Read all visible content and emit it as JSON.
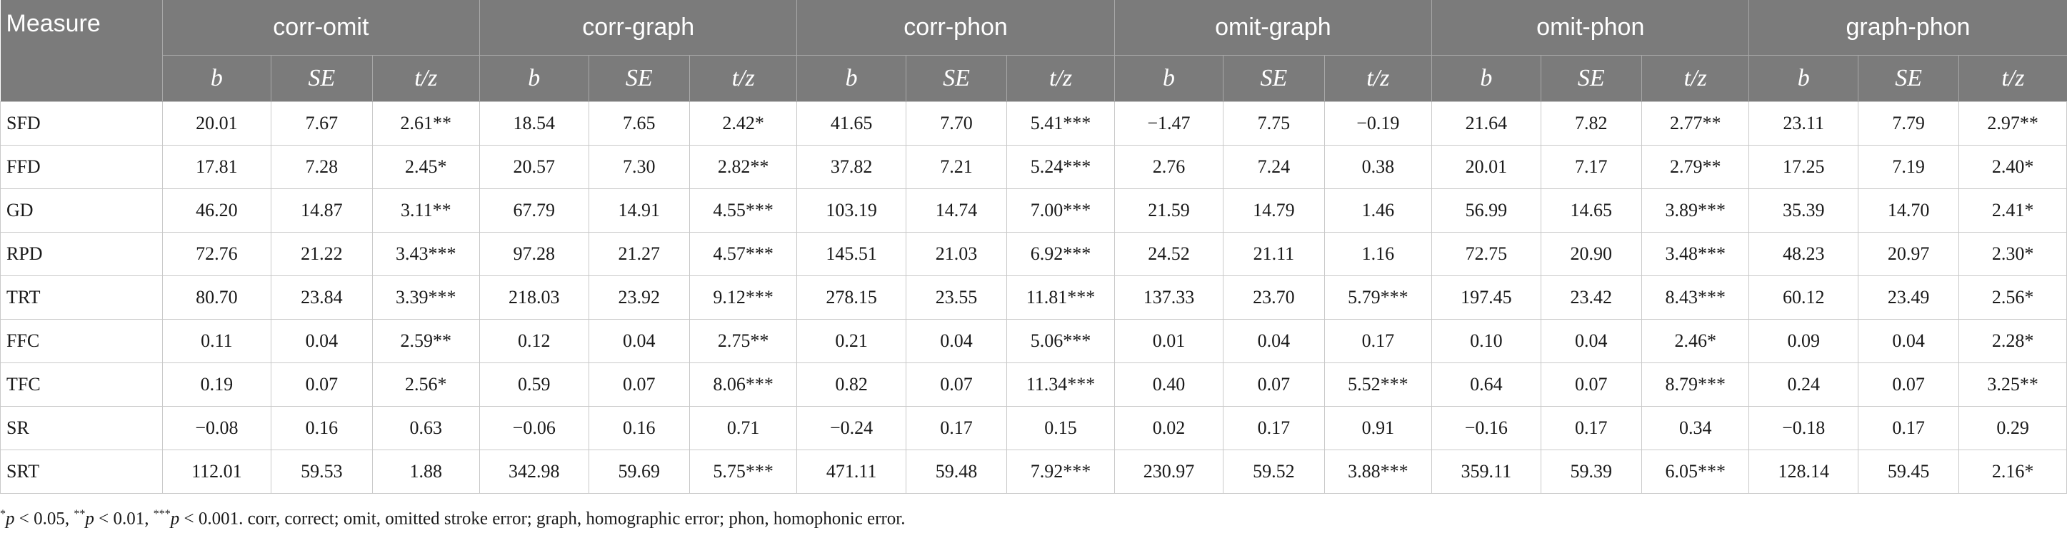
{
  "header": {
    "measure_label": "Measure",
    "groups": [
      "corr-omit",
      "corr-graph",
      "corr-phon",
      "omit-graph",
      "omit-phon",
      "graph-phon"
    ],
    "sub": [
      "b",
      "SE",
      "t/z"
    ]
  },
  "rows": [
    {
      "measure": "SFD",
      "cells": [
        "20.01",
        "7.67",
        "2.61**",
        "18.54",
        "7.65",
        "2.42*",
        "41.65",
        "7.70",
        "5.41***",
        "−1.47",
        "7.75",
        "−0.19",
        "21.64",
        "7.82",
        "2.77**",
        "23.11",
        "7.79",
        "2.97**"
      ]
    },
    {
      "measure": "FFD",
      "cells": [
        "17.81",
        "7.28",
        "2.45*",
        "20.57",
        "7.30",
        "2.82**",
        "37.82",
        "7.21",
        "5.24***",
        "2.76",
        "7.24",
        "0.38",
        "20.01",
        "7.17",
        "2.79**",
        "17.25",
        "7.19",
        "2.40*"
      ]
    },
    {
      "measure": "GD",
      "cells": [
        "46.20",
        "14.87",
        "3.11**",
        "67.79",
        "14.91",
        "4.55***",
        "103.19",
        "14.74",
        "7.00***",
        "21.59",
        "14.79",
        "1.46",
        "56.99",
        "14.65",
        "3.89***",
        "35.39",
        "14.70",
        "2.41*"
      ]
    },
    {
      "measure": "RPD",
      "cells": [
        "72.76",
        "21.22",
        "3.43***",
        "97.28",
        "21.27",
        "4.57***",
        "145.51",
        "21.03",
        "6.92***",
        "24.52",
        "21.11",
        "1.16",
        "72.75",
        "20.90",
        "3.48***",
        "48.23",
        "20.97",
        "2.30*"
      ]
    },
    {
      "measure": "TRT",
      "cells": [
        "80.70",
        "23.84",
        "3.39***",
        "218.03",
        "23.92",
        "9.12***",
        "278.15",
        "23.55",
        "11.81***",
        "137.33",
        "23.70",
        "5.79***",
        "197.45",
        "23.42",
        "8.43***",
        "60.12",
        "23.49",
        "2.56*"
      ]
    },
    {
      "measure": "FFC",
      "cells": [
        "0.11",
        "0.04",
        "2.59**",
        "0.12",
        "0.04",
        "2.75**",
        "0.21",
        "0.04",
        "5.06***",
        "0.01",
        "0.04",
        "0.17",
        "0.10",
        "0.04",
        "2.46*",
        "0.09",
        "0.04",
        "2.28*"
      ]
    },
    {
      "measure": "TFC",
      "cells": [
        "0.19",
        "0.07",
        "2.56*",
        "0.59",
        "0.07",
        "8.06***",
        "0.82",
        "0.07",
        "11.34***",
        "0.40",
        "0.07",
        "5.52***",
        "0.64",
        "0.07",
        "8.79***",
        "0.24",
        "0.07",
        "3.25**"
      ]
    },
    {
      "measure": "SR",
      "cells": [
        "−0.08",
        "0.16",
        "0.63",
        "−0.06",
        "0.16",
        "0.71",
        "−0.24",
        "0.17",
        "0.15",
        "0.02",
        "0.17",
        "0.91",
        "−0.16",
        "0.17",
        "0.34",
        "−0.18",
        "0.17",
        "0.29"
      ]
    },
    {
      "measure": "SRT",
      "cells": [
        "112.01",
        "59.53",
        "1.88",
        "342.98",
        "59.69",
        "5.75***",
        "471.11",
        "59.48",
        "7.92***",
        "230.97",
        "59.52",
        "3.88***",
        "359.11",
        "59.39",
        "6.05***",
        "128.14",
        "59.45",
        "2.16*"
      ]
    }
  ],
  "footnote": {
    "s1": "*",
    "p1": "p",
    "t1": " < 0.05, ",
    "s2": "**",
    "p2": "p",
    "t2": " < 0.01, ",
    "s3": "***",
    "p3": "p",
    "t3": " < 0.001. corr, correct; omit, omitted stroke error; graph, homographic error; phon, homophonic error."
  },
  "colors": {
    "header_bg": "#7b7b7b",
    "header_text": "#ffffff",
    "grid": "#c9c9c9"
  }
}
